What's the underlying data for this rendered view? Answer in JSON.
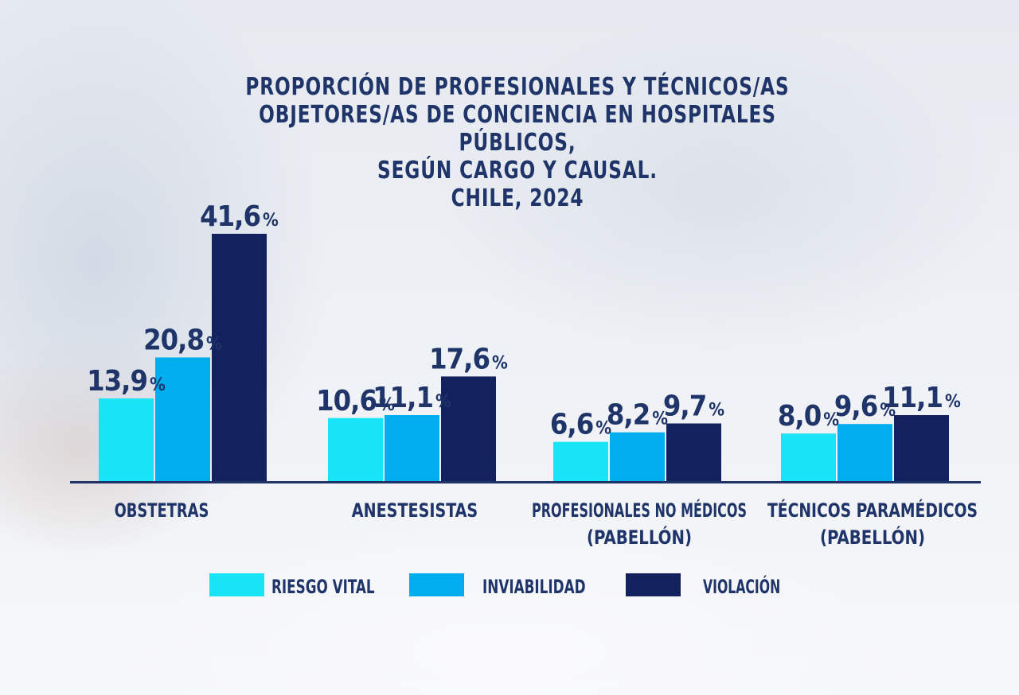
{
  "title_lines": [
    "PROPORCIÓN DE PROFESIONALES Y TÉCNICOS/AS",
    "OBJETORES/AS DE CONCIENCIA EN HOSPITALES PÚBLICOS,",
    "SEGÚN CARGO Y CAUSAL.",
    "CHILE, 2024"
  ],
  "colors": {
    "riesgo_vital": "#19e3f7",
    "inviabilidad": "#00aeef",
    "violacion": "#13225e",
    "text": "#1f3468",
    "axis": "#1f3468"
  },
  "chart_data": {
    "type": "bar",
    "title": "PROPORCIÓN DE PROFESIONALES Y TÉCNICOS/AS OBJETORES/AS DE CONCIENCIA EN HOSPITALES PÚBLICOS, SEGÚN CARGO Y CAUSAL. CHILE, 2024",
    "categories": [
      [
        "OBSTETRAS"
      ],
      [
        "ANESTESISTAS"
      ],
      [
        "PROFESIONALES NO MÉDICOS",
        "(PABELLÓN)"
      ],
      [
        "TÉCNICOS PARAMÉDICOS",
        "(PABELLÓN)"
      ]
    ],
    "series": [
      {
        "name": "RIESGO VITAL",
        "values": [
          13.9,
          10.6,
          6.6,
          8.0
        ],
        "labels": [
          "13,9",
          "10,6",
          "6,6",
          "8,0"
        ],
        "color": "#19e3f7"
      },
      {
        "name": "INVIABILIDAD",
        "values": [
          20.8,
          11.1,
          8.2,
          9.6
        ],
        "labels": [
          "20,8",
          "11,1",
          "8,2",
          "9,6"
        ],
        "color": "#00aeef"
      },
      {
        "name": "VIOLACIÓN",
        "values": [
          41.6,
          17.6,
          9.7,
          11.1
        ],
        "labels": [
          "41,6",
          "17,6",
          "9,7",
          "11,1"
        ],
        "color": "#13225e"
      }
    ],
    "unit": "%",
    "ylim": [
      0,
      41.6
    ],
    "grid": false,
    "legend": "bottom"
  }
}
